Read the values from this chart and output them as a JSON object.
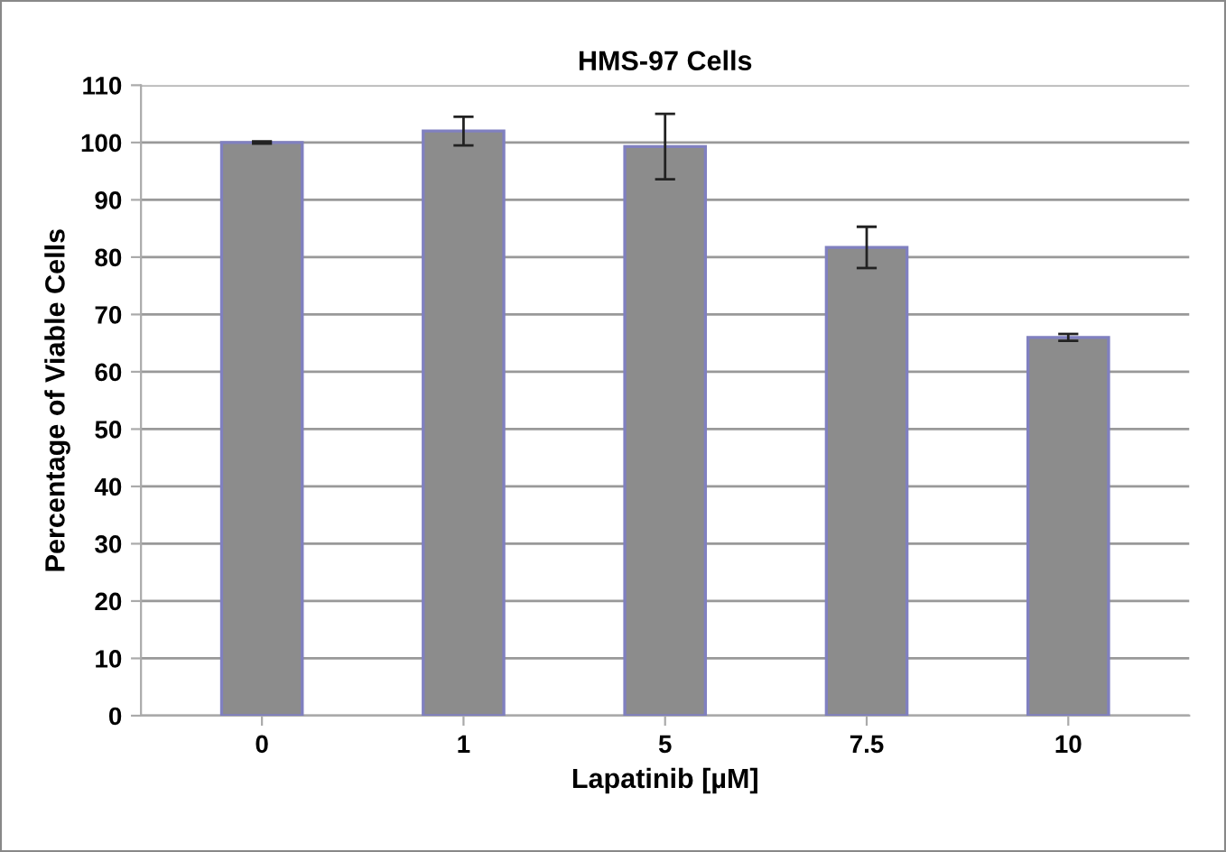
{
  "chart_data": {
    "type": "bar",
    "title": "HMS-97 Cells",
    "xlabel": "Lapatinib [µM]",
    "ylabel": "Percentage of Viable Cells",
    "categories": [
      "0",
      "1",
      "5",
      "7.5",
      "10"
    ],
    "values": [
      100,
      102,
      99.3,
      81.7,
      66
    ],
    "errors": [
      0.2,
      2.5,
      5.7,
      3.6,
      0.6
    ],
    "color": "#8c8c8c",
    "ylim": [
      0,
      110
    ],
    "yticks": [
      0,
      10,
      20,
      30,
      40,
      50,
      60,
      70,
      80,
      90,
      100,
      110
    ],
    "grid": "y",
    "legend": false
  }
}
